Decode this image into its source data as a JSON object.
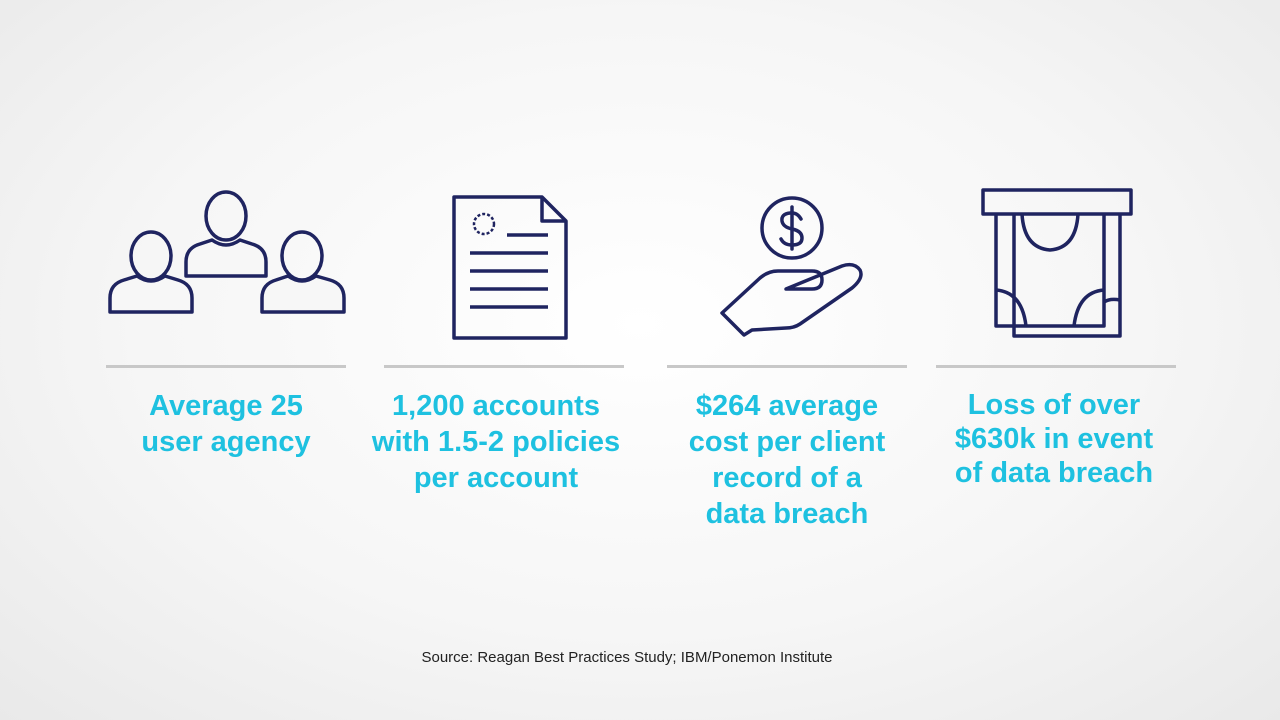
{
  "stats": [
    {
      "icon": "users-group-icon",
      "lines": [
        "Average 25",
        "user agency"
      ]
    },
    {
      "icon": "document-certificate-icon",
      "lines": [
        "1,200 accounts",
        "with 1.5-2 policies",
        "per account"
      ]
    },
    {
      "icon": "hand-dollar-coin-icon",
      "lines": [
        "$264 average",
        "cost per client",
        "record of a",
        "data breach"
      ]
    },
    {
      "icon": "cash-dispenser-icon",
      "lines": [
        "Loss of over",
        "$630k in event",
        "of data breach"
      ]
    }
  ],
  "source": "Source: Reagan Best Practices Study; IBM/Ponemon Institute",
  "colors": {
    "icon_stroke": "#1f2460",
    "accent": "#1ec1e0",
    "rule": "#c8c8c8"
  }
}
